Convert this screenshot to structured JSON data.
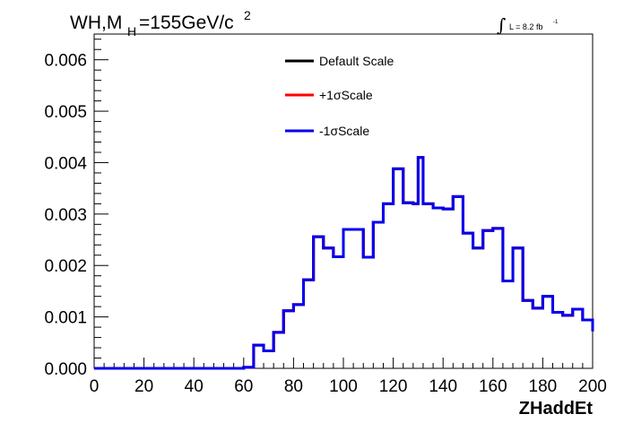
{
  "title": {
    "prefix": "WH,M",
    "sub": "H",
    "main": "=155GeV/c",
    "sup": "2"
  },
  "luminosity": {
    "symbol": "∫",
    "text": "L = 8.2 fb",
    "exponent": "-1"
  },
  "chart_data": {
    "type": "line",
    "title": "WH,MH=155GeV/c2",
    "xlabel": "ZHaddEt",
    "ylabel": "",
    "xlim": [
      0,
      200
    ],
    "ylim": [
      0,
      0.0065
    ],
    "x_ticks": [
      "0",
      "20",
      "40",
      "60",
      "80",
      "100",
      "120",
      "140",
      "160",
      "180",
      "200"
    ],
    "y_ticks": [
      "0.000",
      "0.001",
      "0.002",
      "0.003",
      "0.004",
      "0.005",
      "0.006"
    ],
    "bin_edges": [
      0,
      4,
      8,
      12,
      16,
      20,
      24,
      28,
      32,
      36,
      40,
      44,
      48,
      52,
      56,
      60,
      64,
      68,
      72,
      76,
      80,
      84,
      88,
      92,
      96,
      100,
      104,
      108,
      112,
      116,
      120,
      124,
      128,
      130,
      132,
      136,
      140,
      144,
      148,
      152,
      156,
      160,
      164,
      168,
      172,
      176,
      180,
      184,
      188,
      192,
      196,
      200
    ],
    "series": [
      {
        "name": "Default Scale",
        "color": "#000000",
        "values": [
          0,
          0,
          0,
          0,
          0,
          0,
          0,
          0,
          0,
          0,
          0,
          0,
          0,
          0,
          0,
          2e-05,
          0.00045,
          0.00034,
          0.0007,
          0.00112,
          0.00124,
          0.00172,
          0.00256,
          0.00234,
          0.00217,
          0.0027,
          0.0027,
          0.00216,
          0.00284,
          0.0032,
          0.00388,
          0.00322,
          0.0032,
          0.0041,
          0.0032,
          0.00312,
          0.0031,
          0.00334,
          0.00263,
          0.00234,
          0.00268,
          0.00272,
          0.0017,
          0.00234,
          0.00132,
          0.00117,
          0.0014,
          0.00109,
          0.00103,
          0.00115,
          0.00094,
          0.00072
        ]
      },
      {
        "name": "+1σScale",
        "color": "#ff0000",
        "values": [
          0,
          0,
          0,
          0,
          0,
          0,
          0,
          0,
          0,
          0,
          0,
          0,
          0,
          0,
          0,
          2e-05,
          0.00045,
          0.00034,
          0.0007,
          0.00112,
          0.00124,
          0.00172,
          0.00256,
          0.00234,
          0.00217,
          0.0027,
          0.0027,
          0.00216,
          0.00284,
          0.0032,
          0.00388,
          0.00322,
          0.0032,
          0.0041,
          0.0032,
          0.00312,
          0.0031,
          0.00334,
          0.00263,
          0.00234,
          0.00268,
          0.00272,
          0.0017,
          0.00234,
          0.00132,
          0.00117,
          0.0014,
          0.00109,
          0.00103,
          0.00115,
          0.00094,
          0.00072
        ]
      },
      {
        "name": "-1σScale",
        "color": "#0000ee",
        "values": [
          0,
          0,
          0,
          0,
          0,
          0,
          0,
          0,
          0,
          0,
          0,
          0,
          0,
          0,
          0,
          2e-05,
          0.00045,
          0.00034,
          0.0007,
          0.00112,
          0.00124,
          0.00172,
          0.00256,
          0.00234,
          0.00217,
          0.0027,
          0.0027,
          0.00216,
          0.00284,
          0.0032,
          0.00388,
          0.00322,
          0.0032,
          0.0041,
          0.0032,
          0.00312,
          0.0031,
          0.00334,
          0.00263,
          0.00234,
          0.00268,
          0.00272,
          0.0017,
          0.00234,
          0.00132,
          0.00117,
          0.0014,
          0.00109,
          0.00103,
          0.00115,
          0.00094,
          0.00072
        ]
      }
    ],
    "legend": {
      "placement": "top-center",
      "entries": [
        "Default Scale",
        "+1σScale",
        "-1σScale"
      ]
    },
    "grid": false
  }
}
